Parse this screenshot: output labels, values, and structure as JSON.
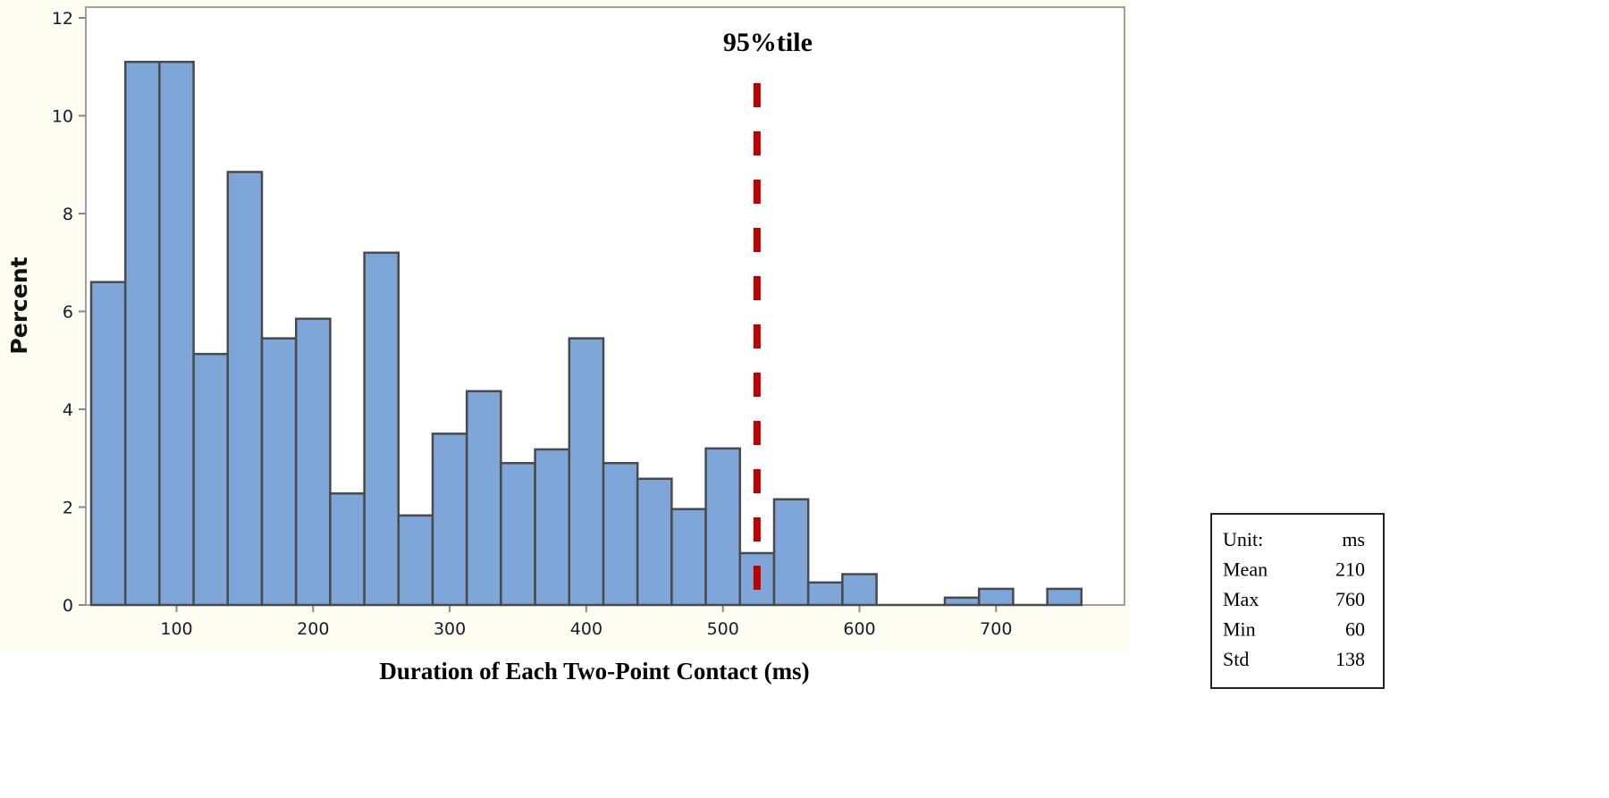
{
  "chart_data": {
    "type": "bar",
    "subtype": "histogram",
    "title": "",
    "xlabel": "Duration of Each Two-Point Contact (ms)",
    "ylabel": "Percent",
    "xlim": [
      34,
      794
    ],
    "ylim": [
      0,
      12
    ],
    "bin_width": 25,
    "x_ticks": [
      100,
      200,
      300,
      400,
      500,
      600,
      700
    ],
    "y_ticks": [
      0,
      2,
      4,
      6,
      8,
      10,
      12
    ],
    "bin_centers": [
      50,
      75,
      100,
      125,
      150,
      175,
      200,
      225,
      250,
      275,
      300,
      325,
      350,
      375,
      400,
      425,
      450,
      475,
      500,
      525,
      550,
      575,
      600,
      625,
      650,
      675,
      700,
      725,
      750
    ],
    "values": [
      6.6,
      11.1,
      11.1,
      5.13,
      8.85,
      5.45,
      5.85,
      2.28,
      7.2,
      1.83,
      3.5,
      4.37,
      2.9,
      3.18,
      5.45,
      2.9,
      2.58,
      1.96,
      3.2,
      1.06,
      2.16,
      0.46,
      0.63,
      0,
      0,
      0.15,
      0.33,
      0,
      0.33
    ],
    "bar_color": "#7ea6d8",
    "bar_edge_color": "#4a4a4a",
    "grid": false,
    "annotation": {
      "label": "95%tile",
      "x": 525,
      "color": "#c00000",
      "style": "dashed"
    },
    "stats_box": {
      "placement": "bottom-right",
      "rows": [
        {
          "label": "Unit:",
          "value": "ms"
        },
        {
          "label": "Mean",
          "value": "210"
        },
        {
          "label": "Max",
          "value": "760"
        },
        {
          "label": "Min",
          "value": "60"
        },
        {
          "label": "Std",
          "value": "138"
        }
      ]
    }
  }
}
